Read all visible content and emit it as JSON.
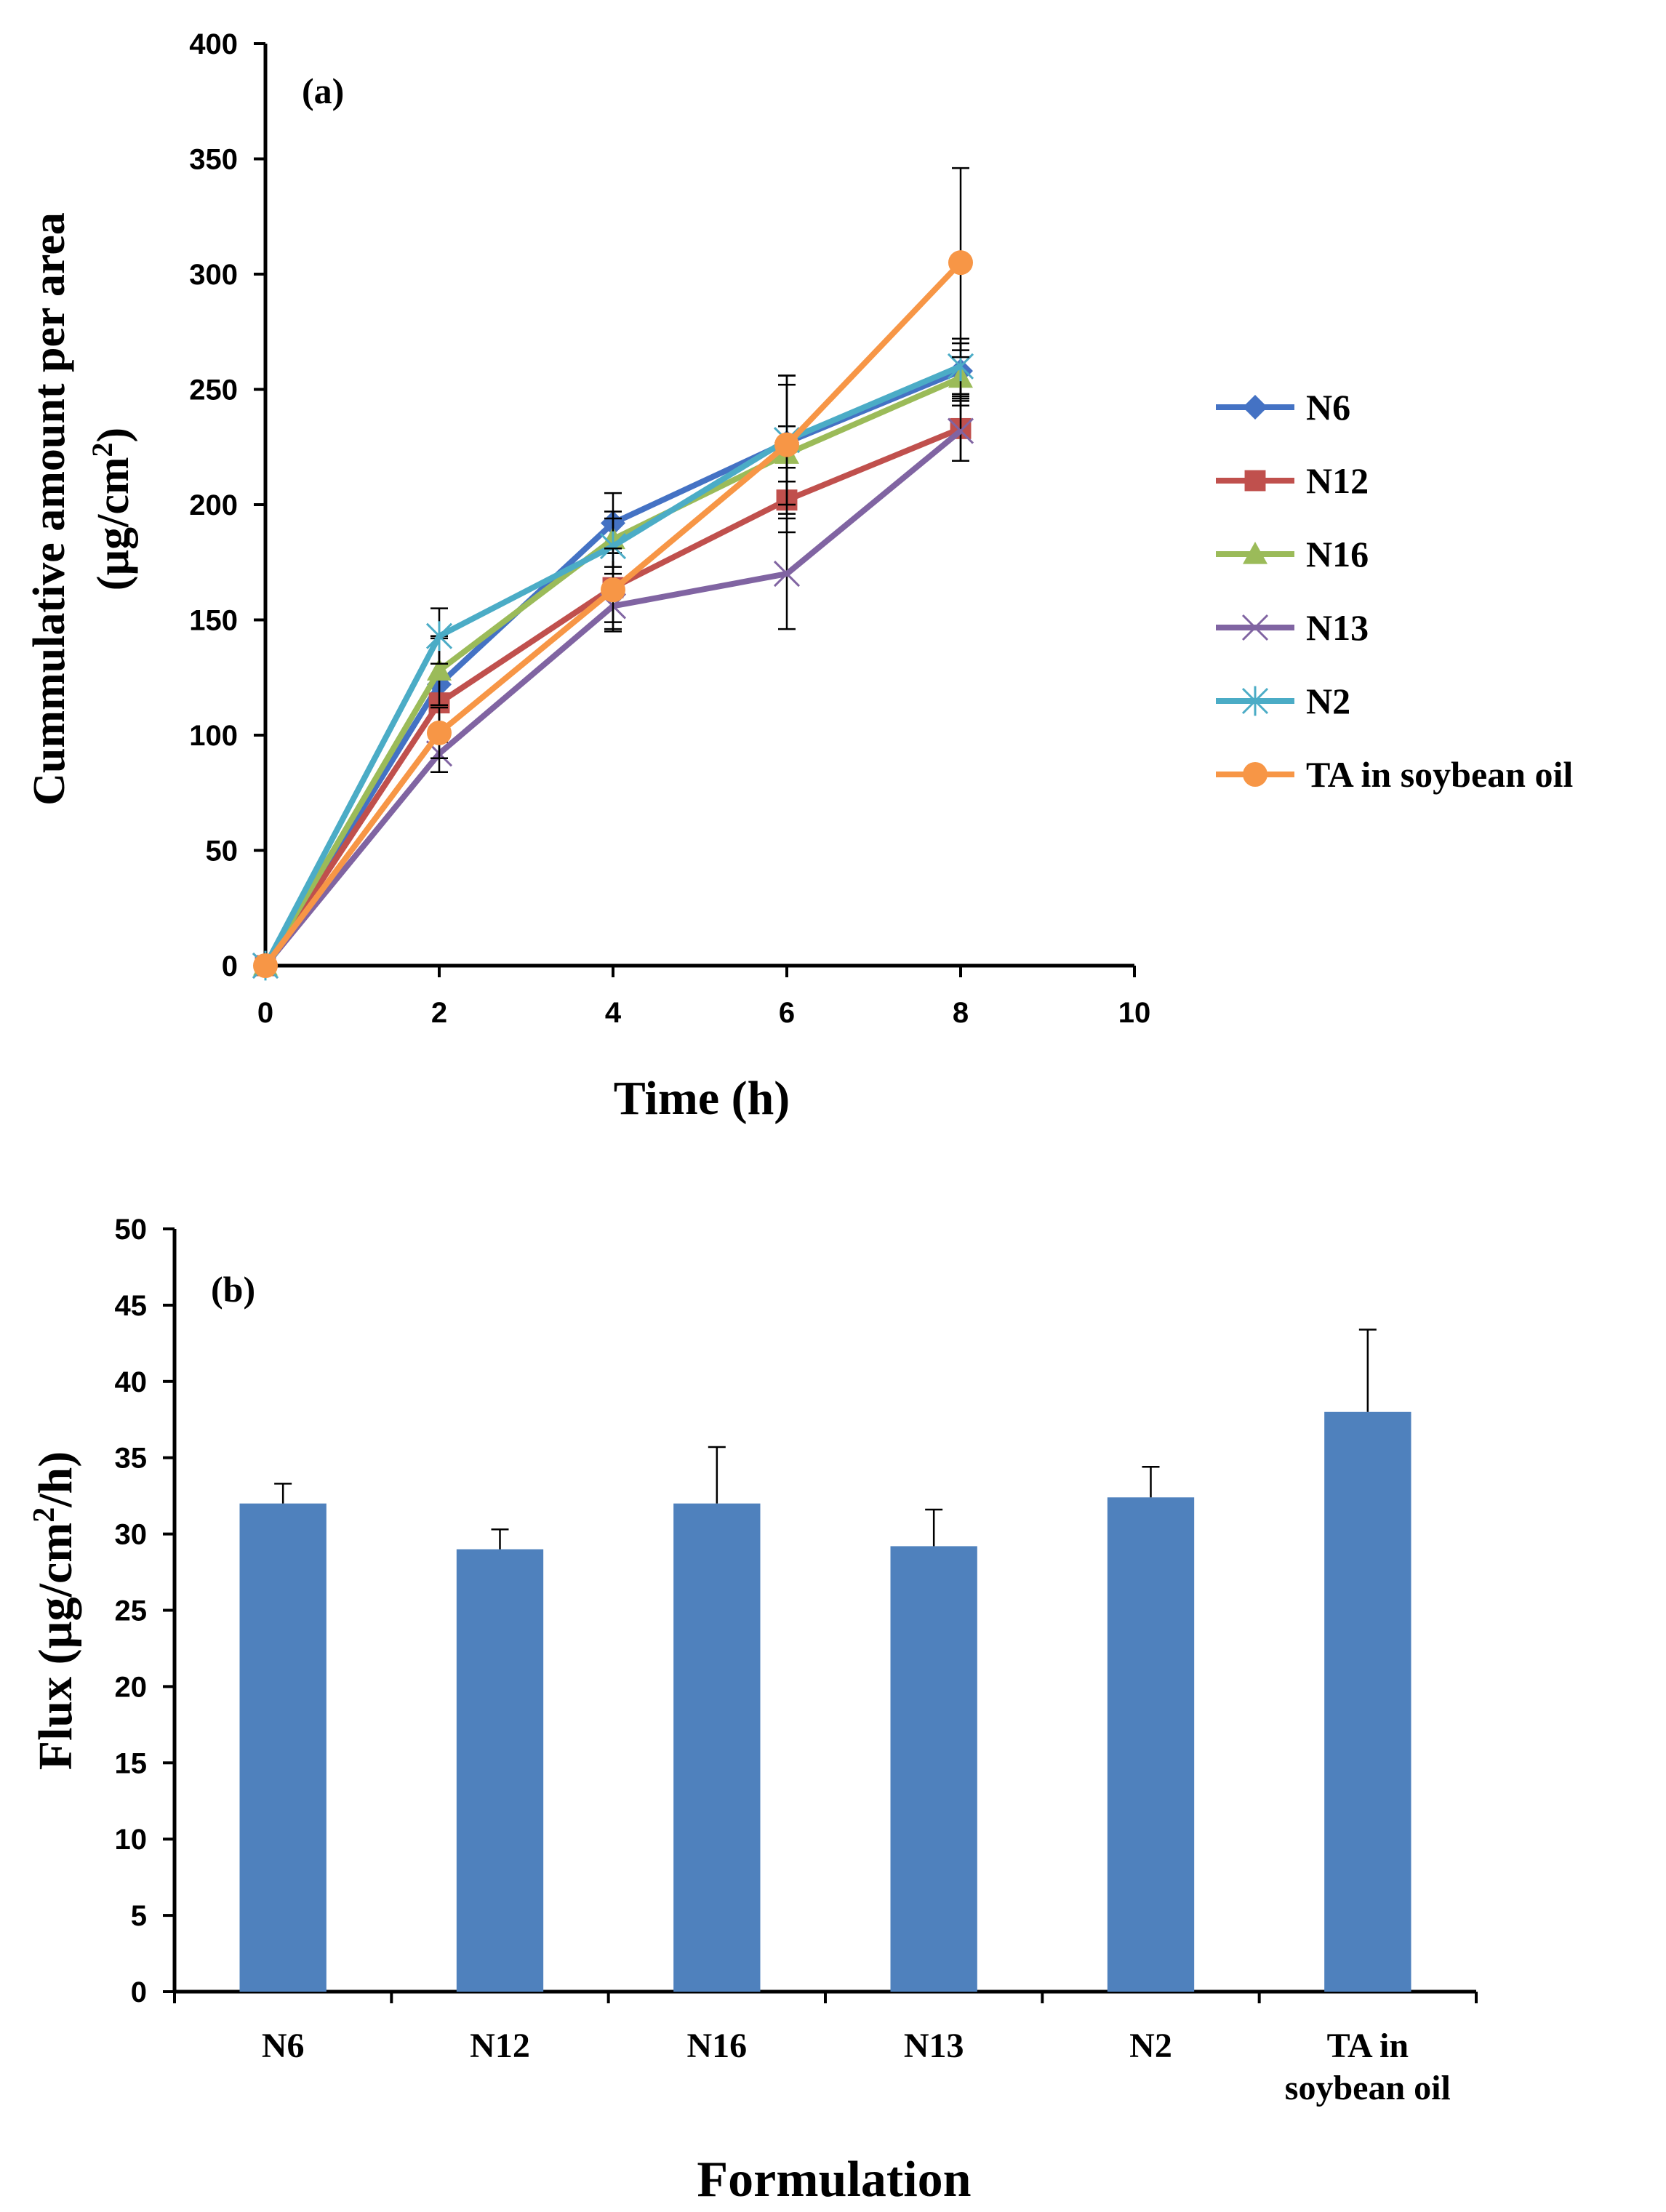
{
  "chart_data": [
    {
      "panel": "(a)",
      "type": "line",
      "xlabel": "Time (h)",
      "ylabel_line1": "Cummulative amount per area",
      "ylabel_line2": "(µg/cm²)",
      "ylabel_line2_base": "(µg/cm",
      "ylabel_line2_sup": "2",
      "ylabel_line2_close": ")",
      "xlim": [
        0,
        10
      ],
      "ylim": [
        0,
        400
      ],
      "xticks": [
        0,
        2,
        4,
        6,
        8,
        10
      ],
      "yticks": [
        0,
        50,
        100,
        150,
        200,
        250,
        300,
        350,
        400
      ],
      "x": [
        0,
        2,
        4,
        6,
        8
      ],
      "legend_position": "right",
      "series": [
        {
          "name": "N6",
          "marker": "diamond",
          "color": "#4472C4",
          "values": [
            0,
            122,
            192,
            227,
            258
          ],
          "errors": [
            0,
            20,
            13,
            25,
            12
          ]
        },
        {
          "name": "N12",
          "marker": "square",
          "color": "#C0504D",
          "values": [
            0,
            114,
            164,
            202,
            233
          ],
          "errors": [
            0,
            17,
            15,
            14,
            14
          ]
        },
        {
          "name": "N16",
          "marker": "triangle",
          "color": "#9BBB59",
          "values": [
            0,
            128,
            185,
            222,
            255
          ],
          "errors": [
            0,
            15,
            12,
            12,
            12
          ]
        },
        {
          "name": "N13",
          "marker": "x",
          "color": "#8064A2",
          "values": [
            0,
            92,
            156,
            170,
            232
          ],
          "errors": [
            0,
            8,
            10,
            24,
            13
          ]
        },
        {
          "name": "N2",
          "marker": "star",
          "color": "#4BACC6",
          "values": [
            0,
            143,
            182,
            228,
            260
          ],
          "errors": [
            0,
            12,
            12,
            28,
            12
          ]
        },
        {
          "name": "TA in soybean oil",
          "marker": "circle",
          "color": "#F79646",
          "values": [
            0,
            101,
            163,
            226,
            305
          ],
          "errors": [
            0,
            11,
            18,
            30,
            41
          ]
        }
      ]
    },
    {
      "panel": "(b)",
      "type": "bar",
      "xlabel": "Formulation",
      "ylabel_base": "Flux (µg/cm",
      "ylabel_sup": "2",
      "ylabel_close": "/h)",
      "ylim": [
        0,
        50
      ],
      "yticks": [
        0,
        5,
        10,
        15,
        20,
        25,
        30,
        35,
        40,
        45,
        50
      ],
      "bar_color": "#4F81BD",
      "categories": [
        {
          "line1": "N6",
          "line2": ""
        },
        {
          "line1": "N12",
          "line2": ""
        },
        {
          "line1": "N16",
          "line2": ""
        },
        {
          "line1": "N13",
          "line2": ""
        },
        {
          "line1": "N2",
          "line2": ""
        },
        {
          "line1": "TA in",
          "line2": "soybean oil"
        }
      ],
      "values": [
        32.0,
        29.0,
        32.0,
        29.2,
        32.4,
        38.0
      ],
      "errors": [
        1.3,
        1.3,
        3.7,
        2.4,
        2.0,
        5.4
      ]
    }
  ]
}
